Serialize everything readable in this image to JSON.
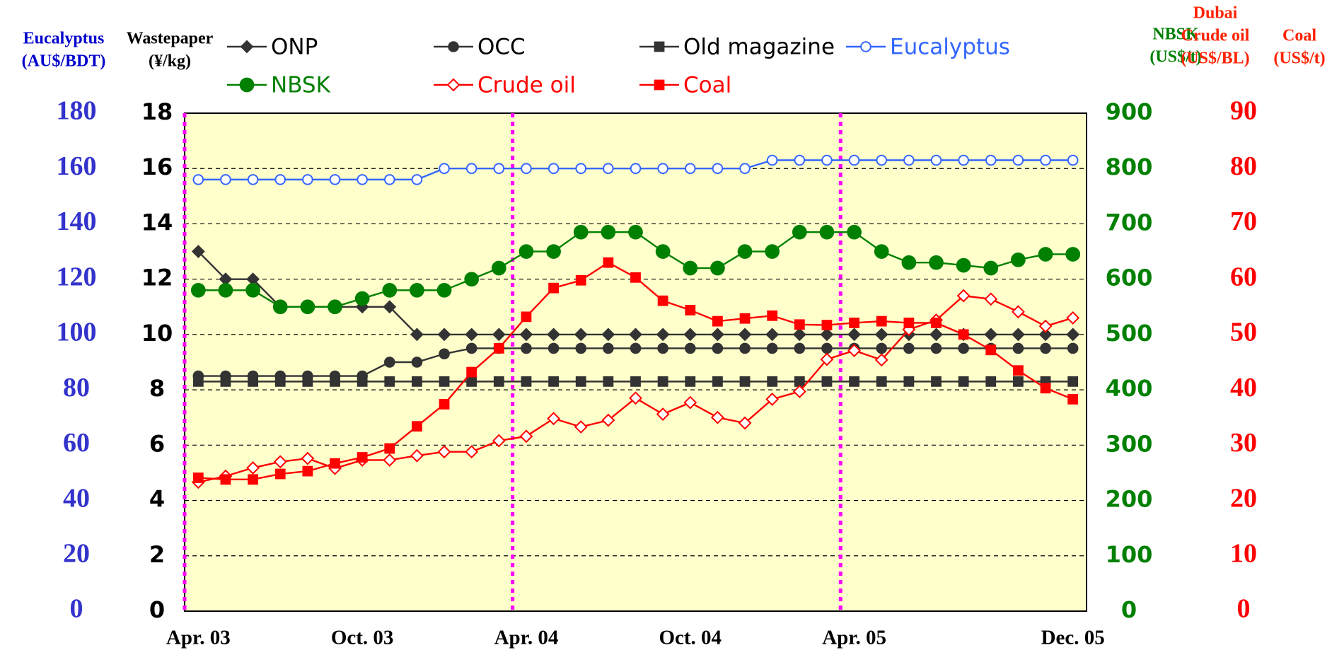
{
  "chart_data": {
    "type": "line",
    "categories": [
      "Apr. 03",
      null,
      null,
      null,
      null,
      null,
      "Oct. 03",
      null,
      null,
      null,
      null,
      null,
      "Apr. 04",
      null,
      null,
      null,
      null,
      null,
      "Oct. 04",
      null,
      null,
      null,
      null,
      null,
      "Apr. 05",
      null,
      null,
      null,
      null,
      null,
      null,
      null,
      "Dec. 05"
    ],
    "ylim": [
      0,
      18
    ],
    "yticks": [
      0,
      2,
      4,
      6,
      8,
      10,
      12,
      14,
      16,
      18
    ],
    "y_title": [
      "Wastepaper",
      "(¥/kg)"
    ],
    "y_color": "#000000",
    "y2lim": [
      0,
      900
    ],
    "y2ticks": [
      0,
      100,
      200,
      300,
      400,
      500,
      600,
      700,
      800,
      900
    ],
    "y2_title": [
      "NBSK",
      "(US$/t)"
    ],
    "y2_color": "#008000",
    "y3lim": [
      0,
      90
    ],
    "y3ticks": [
      0,
      10,
      20,
      30,
      40,
      50,
      60,
      70,
      80,
      90
    ],
    "y3_titles": [
      [
        "Dubai",
        "Crude oil",
        "(US$/BL)"
      ],
      [
        "Coal",
        "(US$/t)"
      ]
    ],
    "y3_color": "#ff0000",
    "y4lim": [
      0,
      180
    ],
    "y4ticks": [
      0,
      20,
      40,
      60,
      80,
      100,
      120,
      140,
      160,
      180
    ],
    "y4_title": [
      "Eucalyptus",
      "(AU$/BDT)"
    ],
    "y4_color": "#3333cc",
    "grid": true,
    "series": [
      {
        "name": "ONP",
        "color": "#333333",
        "marker": "diamond",
        "filled": true,
        "axis": "y",
        "values": [
          13,
          12,
          12,
          11,
          11,
          11,
          11,
          11,
          10,
          10,
          10,
          10,
          10,
          10,
          10,
          10,
          10,
          10,
          10,
          10,
          10,
          10,
          10,
          10,
          10,
          10,
          10,
          10,
          10,
          10,
          10,
          10,
          10
        ]
      },
      {
        "name": "OCC",
        "color": "#333333",
        "marker": "circle",
        "filled": true,
        "axis": "y",
        "values": [
          8.5,
          8.5,
          8.5,
          8.5,
          8.5,
          8.5,
          8.5,
          9,
          9,
          9.3,
          9.5,
          9.5,
          9.5,
          9.5,
          9.5,
          9.5,
          9.5,
          9.5,
          9.5,
          9.5,
          9.5,
          9.5,
          9.5,
          9.5,
          9.5,
          9.5,
          9.5,
          9.5,
          9.5,
          9.5,
          9.5,
          9.5,
          9.5
        ]
      },
      {
        "name": "Old magazine",
        "color": "#333333",
        "marker": "square",
        "filled": true,
        "axis": "y",
        "values": [
          8.3,
          8.3,
          8.3,
          8.3,
          8.3,
          8.3,
          8.3,
          8.3,
          8.3,
          8.3,
          8.3,
          8.3,
          8.3,
          8.3,
          8.3,
          8.3,
          8.3,
          8.3,
          8.3,
          8.3,
          8.3,
          8.3,
          8.3,
          8.3,
          8.3,
          8.3,
          8.3,
          8.3,
          8.3,
          8.3,
          8.3,
          8.3,
          8.3
        ]
      },
      {
        "name": "Eucalyptus",
        "color": "#3366ff",
        "marker": "circle",
        "filled": false,
        "axis": "y4",
        "values": [
          156,
          156,
          156,
          156,
          156,
          156,
          156,
          156,
          156,
          160,
          160,
          160,
          160,
          160,
          160,
          160,
          160,
          160,
          160,
          160,
          160,
          163,
          163,
          163,
          163,
          163,
          163,
          163,
          163,
          163,
          163,
          163,
          163
        ]
      },
      {
        "name": "NBSK",
        "color": "#008000",
        "marker": "circle",
        "filled": true,
        "axis": "y2",
        "values": [
          580,
          580,
          580,
          550,
          550,
          550,
          565,
          580,
          580,
          580,
          600,
          620,
          650,
          650,
          685,
          685,
          685,
          650,
          620,
          620,
          650,
          650,
          685,
          685,
          685,
          650,
          630,
          630,
          625,
          620,
          635,
          645,
          645
        ]
      },
      {
        "name": "Crude oil",
        "color": "#ff0000",
        "marker": "diamond",
        "filled": false,
        "axis": "y3",
        "values": [
          23.3,
          24.4,
          25.9,
          27.0,
          27.6,
          25.8,
          27.3,
          27.3,
          28.1,
          28.8,
          28.8,
          30.8,
          31.6,
          34.8,
          33.3,
          34.5,
          38.5,
          35.6,
          37.7,
          35.0,
          34.0,
          38.3,
          39.7,
          45.5,
          47.1,
          45.4,
          50.9,
          52.6,
          57.0,
          56.4,
          54.1,
          51.5,
          53.0
        ]
      },
      {
        "name": "Coal",
        "color": "#ff0000",
        "marker": "square",
        "filled": true,
        "axis": "y3",
        "values": [
          24.1,
          23.8,
          23.8,
          24.8,
          25.3,
          26.7,
          27.8,
          29.4,
          33.4,
          37.4,
          43.2,
          47.5,
          53.2,
          58.4,
          59.8,
          63.0,
          60.3,
          56.1,
          54.4,
          52.4,
          52.9,
          53.4,
          51.8,
          51.7,
          52.1,
          52.4,
          52.1,
          52.1,
          50.0,
          47.2,
          43.5,
          40.3,
          38.3
        ]
      }
    ]
  }
}
